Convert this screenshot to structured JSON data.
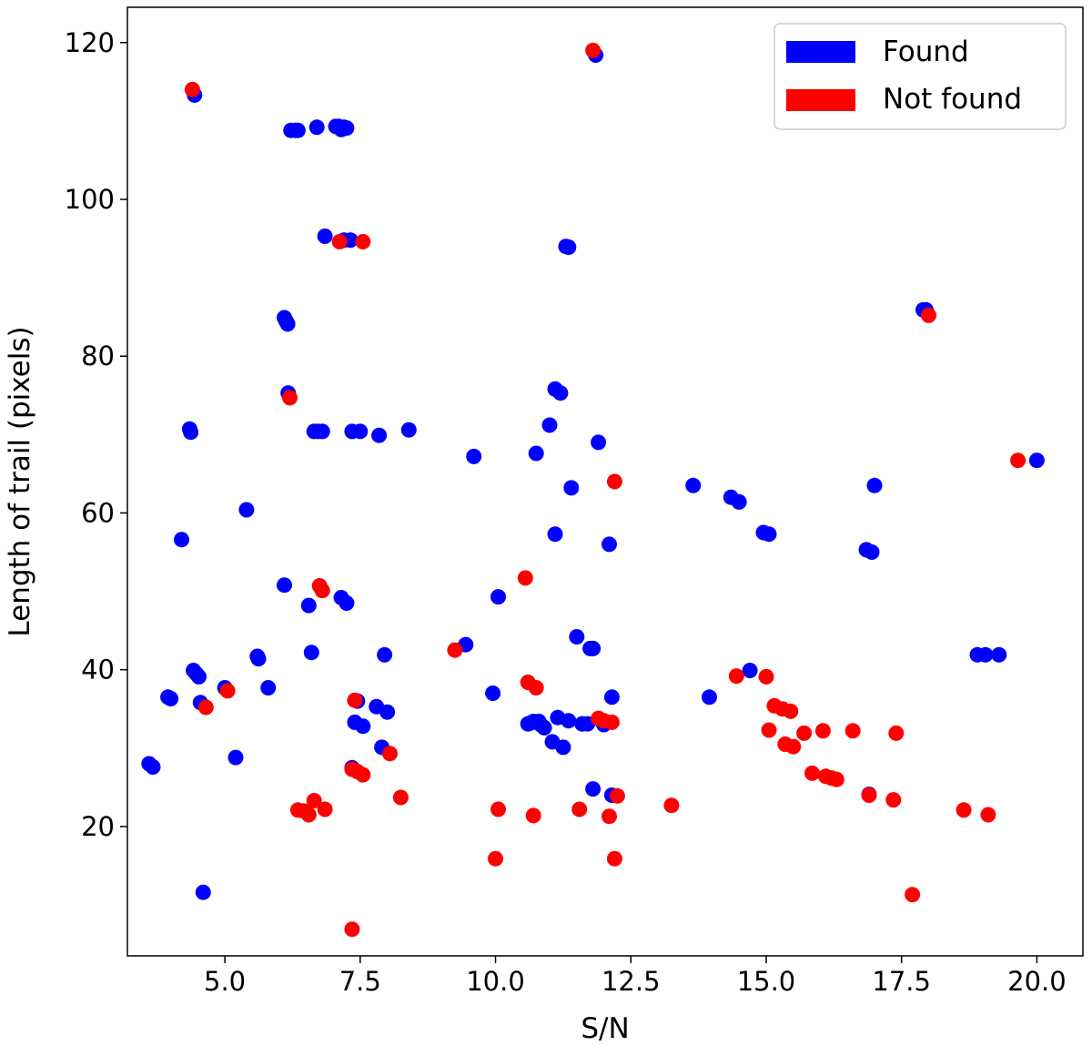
{
  "chart_data": {
    "type": "scatter",
    "title": "",
    "xlabel": "S/N",
    "ylabel": "Length of trail (pixels)",
    "xlim": [
      3.2,
      20.85
    ],
    "ylim": [
      3.5,
      124.5
    ],
    "xticks": [
      5.0,
      7.5,
      10.0,
      12.5,
      15.0,
      17.5,
      20.0
    ],
    "xtick_labels": [
      "5.0",
      "7.5",
      "10.0",
      "12.5",
      "15.0",
      "17.5",
      "20.0"
    ],
    "yticks": [
      20,
      40,
      60,
      80,
      100,
      120
    ],
    "ytick_labels": [
      "20",
      "40",
      "60",
      "80",
      "100",
      "120"
    ],
    "grid": false,
    "legend": {
      "placement": "top-right",
      "entries": [
        "Found",
        "Not found"
      ]
    },
    "series": [
      {
        "name": "Found",
        "color": "#0000ff",
        "points": [
          [
            3.6,
            28.0
          ],
          [
            3.67,
            27.6
          ],
          [
            3.95,
            36.5
          ],
          [
            4.0,
            36.3
          ],
          [
            4.2,
            56.6
          ],
          [
            4.35,
            70.7
          ],
          [
            4.37,
            70.3
          ],
          [
            4.42,
            39.9
          ],
          [
            4.47,
            39.5
          ],
          [
            4.52,
            39.1
          ],
          [
            4.55,
            35.8
          ],
          [
            4.6,
            11.6
          ],
          [
            5.0,
            37.7
          ],
          [
            5.2,
            28.8
          ],
          [
            5.4,
            60.4
          ],
          [
            5.6,
            41.7
          ],
          [
            5.62,
            41.4
          ],
          [
            5.8,
            37.7
          ],
          [
            4.44,
            113.3
          ],
          [
            6.1,
            84.9
          ],
          [
            6.13,
            84.5
          ],
          [
            6.16,
            84.1
          ],
          [
            6.1,
            50.8
          ],
          [
            6.17,
            75.3
          ],
          [
            6.22,
            108.8
          ],
          [
            6.3,
            108.8
          ],
          [
            6.35,
            108.8
          ],
          [
            6.55,
            48.2
          ],
          [
            6.6,
            42.2
          ],
          [
            6.65,
            70.4
          ],
          [
            6.7,
            109.2
          ],
          [
            6.72,
            70.4
          ],
          [
            6.8,
            70.4
          ],
          [
            6.85,
            95.3
          ],
          [
            7.05,
            109.3
          ],
          [
            7.1,
            109.3
          ],
          [
            7.15,
            108.9
          ],
          [
            7.2,
            109.2
          ],
          [
            7.25,
            109.1
          ],
          [
            7.15,
            49.2
          ],
          [
            7.25,
            48.5
          ],
          [
            7.2,
            94.8
          ],
          [
            7.32,
            94.8
          ],
          [
            7.35,
            70.4
          ],
          [
            7.4,
            33.3
          ],
          [
            7.45,
            36.0
          ],
          [
            7.5,
            70.4
          ],
          [
            7.55,
            32.8
          ],
          [
            7.35,
            27.5
          ],
          [
            7.8,
            35.3
          ],
          [
            7.85,
            69.9
          ],
          [
            7.9,
            30.1
          ],
          [
            7.95,
            41.9
          ],
          [
            8.0,
            34.6
          ],
          [
            8.4,
            70.6
          ],
          [
            9.45,
            43.2
          ],
          [
            9.6,
            67.2
          ],
          [
            9.95,
            37.0
          ],
          [
            10.05,
            49.3
          ],
          [
            10.6,
            33.1
          ],
          [
            10.65,
            33.2
          ],
          [
            10.7,
            33.4
          ],
          [
            10.75,
            67.6
          ],
          [
            10.8,
            33.4
          ],
          [
            10.85,
            32.9
          ],
          [
            10.9,
            32.6
          ],
          [
            11.0,
            71.2
          ],
          [
            11.05,
            30.8
          ],
          [
            11.1,
            75.8
          ],
          [
            11.1,
            57.3
          ],
          [
            11.15,
            33.9
          ],
          [
            11.2,
            75.3
          ],
          [
            11.25,
            30.1
          ],
          [
            11.3,
            94.0
          ],
          [
            11.35,
            93.9
          ],
          [
            11.35,
            33.5
          ],
          [
            11.4,
            63.2
          ],
          [
            11.5,
            44.2
          ],
          [
            11.6,
            33.1
          ],
          [
            11.7,
            33.1
          ],
          [
            11.75,
            42.7
          ],
          [
            11.8,
            42.7
          ],
          [
            11.85,
            118.4
          ],
          [
            11.8,
            24.8
          ],
          [
            11.9,
            69.0
          ],
          [
            12.0,
            33.0
          ],
          [
            12.1,
            56.0
          ],
          [
            12.15,
            36.5
          ],
          [
            12.15,
            24.0
          ],
          [
            13.65,
            63.5
          ],
          [
            13.95,
            36.5
          ],
          [
            14.35,
            62.0
          ],
          [
            14.5,
            61.4
          ],
          [
            14.7,
            39.9
          ],
          [
            14.95,
            57.5
          ],
          [
            15.05,
            57.3
          ],
          [
            16.85,
            55.3
          ],
          [
            16.9,
            24.1
          ],
          [
            16.95,
            55.0
          ],
          [
            17.0,
            63.5
          ],
          [
            17.9,
            85.9
          ],
          [
            17.95,
            85.9
          ],
          [
            18.9,
            41.9
          ],
          [
            19.05,
            41.9
          ],
          [
            19.3,
            41.9
          ],
          [
            20.0,
            66.7
          ]
        ]
      },
      {
        "name": "Not found",
        "color": "#ff0000",
        "points": [
          [
            4.4,
            114.0
          ],
          [
            4.65,
            35.2
          ],
          [
            5.05,
            37.3
          ],
          [
            6.2,
            74.7
          ],
          [
            6.35,
            22.1
          ],
          [
            6.45,
            22.0
          ],
          [
            6.55,
            21.5
          ],
          [
            6.65,
            23.3
          ],
          [
            6.75,
            50.7
          ],
          [
            6.8,
            50.1
          ],
          [
            6.85,
            22.2
          ],
          [
            7.12,
            94.6
          ],
          [
            7.55,
            94.6
          ],
          [
            7.35,
            6.9
          ],
          [
            7.35,
            27.3
          ],
          [
            7.4,
            36.1
          ],
          [
            7.45,
            27.0
          ],
          [
            7.55,
            26.6
          ],
          [
            8.05,
            29.3
          ],
          [
            8.25,
            23.7
          ],
          [
            9.25,
            42.5
          ],
          [
            10.0,
            15.9
          ],
          [
            10.05,
            22.2
          ],
          [
            10.55,
            51.7
          ],
          [
            10.6,
            38.4
          ],
          [
            10.7,
            21.4
          ],
          [
            10.75,
            37.7
          ],
          [
            11.8,
            119.0
          ],
          [
            11.55,
            22.2
          ],
          [
            11.9,
            33.8
          ],
          [
            12.0,
            33.5
          ],
          [
            12.1,
            21.3
          ],
          [
            12.15,
            33.3
          ],
          [
            12.2,
            64.0
          ],
          [
            12.2,
            15.9
          ],
          [
            12.25,
            23.9
          ],
          [
            13.25,
            22.7
          ],
          [
            14.45,
            39.2
          ],
          [
            15.0,
            39.1
          ],
          [
            15.05,
            32.3
          ],
          [
            15.15,
            35.4
          ],
          [
            15.3,
            35.0
          ],
          [
            15.35,
            30.5
          ],
          [
            15.45,
            34.7
          ],
          [
            15.5,
            30.2
          ],
          [
            15.7,
            31.9
          ],
          [
            15.85,
            26.8
          ],
          [
            16.05,
            32.2
          ],
          [
            16.1,
            26.4
          ],
          [
            16.2,
            26.2
          ],
          [
            16.3,
            26.0
          ],
          [
            16.6,
            32.2
          ],
          [
            16.9,
            24.0
          ],
          [
            17.35,
            23.4
          ],
          [
            17.4,
            31.9
          ],
          [
            17.7,
            11.3
          ],
          [
            18.0,
            85.2
          ],
          [
            18.65,
            22.1
          ],
          [
            19.1,
            21.5
          ],
          [
            19.65,
            66.7
          ]
        ]
      }
    ]
  }
}
